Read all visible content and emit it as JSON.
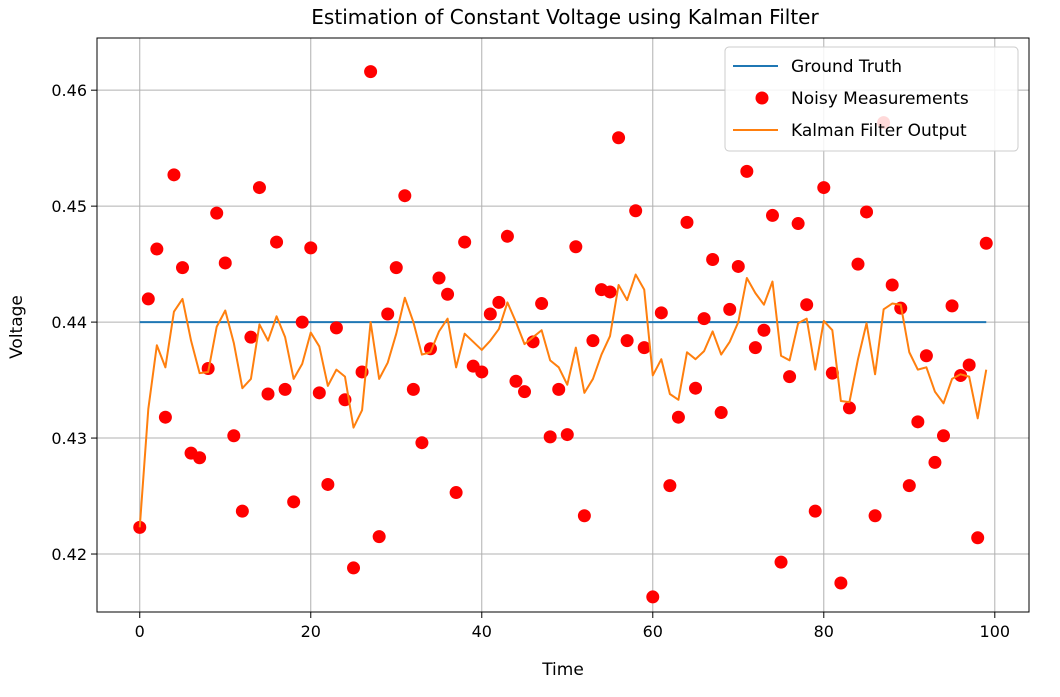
{
  "chart_data": {
    "type": "line",
    "title": "Estimation of Constant Voltage using Kalman Filter",
    "xlabel": "Time",
    "ylabel": "Voltage",
    "xlim": [
      -5,
      104
    ],
    "ylim": [
      0.415,
      0.4645
    ],
    "xticks": [
      0,
      20,
      40,
      60,
      80,
      100
    ],
    "yticks": [
      0.42,
      0.43,
      0.44,
      0.45,
      0.46
    ],
    "xtick_labels": [
      "0",
      "20",
      "40",
      "60",
      "80",
      "100"
    ],
    "ytick_labels": [
      "0.42",
      "0.43",
      "0.44",
      "0.45",
      "0.46"
    ],
    "grid": true,
    "legend_position": "top-right",
    "colors": {
      "ground_truth": "#1f77b4",
      "measurements": "#ff0000",
      "kalman": "#ff7f0e"
    },
    "series": [
      {
        "name": "Ground Truth",
        "kind": "line",
        "x": [
          0,
          99
        ],
        "y": [
          0.44,
          0.44
        ]
      },
      {
        "name": "Noisy Measurements",
        "kind": "scatter",
        "x": [
          0,
          1,
          2,
          3,
          4,
          5,
          6,
          7,
          8,
          9,
          10,
          11,
          12,
          13,
          14,
          15,
          16,
          17,
          18,
          19,
          20,
          21,
          22,
          23,
          24,
          25,
          26,
          27,
          28,
          29,
          30,
          31,
          32,
          33,
          34,
          35,
          36,
          37,
          38,
          39,
          40,
          41,
          42,
          43,
          44,
          45,
          46,
          47,
          48,
          49,
          50,
          51,
          52,
          53,
          54,
          55,
          56,
          57,
          58,
          59,
          60,
          61,
          62,
          63,
          64,
          65,
          66,
          67,
          68,
          69,
          70,
          71,
          72,
          73,
          74,
          75,
          76,
          77,
          78,
          79,
          80,
          81,
          82,
          83,
          84,
          85,
          86,
          87,
          88,
          89,
          90,
          91,
          92,
          93,
          94,
          95,
          96,
          97,
          98,
          99
        ],
        "y": [
          0.4223,
          0.442,
          0.4463,
          0.4318,
          0.4527,
          0.4447,
          0.4287,
          0.4283,
          0.436,
          0.4494,
          0.4451,
          0.4302,
          0.4237,
          0.4387,
          0.4516,
          0.4338,
          0.4469,
          0.4342,
          0.4245,
          0.44,
          0.4464,
          0.4339,
          0.426,
          0.4395,
          0.4333,
          0.4188,
          0.4357,
          0.4616,
          0.4215,
          0.4407,
          0.4447,
          0.4509,
          0.4342,
          0.4296,
          0.4377,
          0.4438,
          0.4424,
          0.4253,
          0.4469,
          0.4362,
          0.4357,
          0.4407,
          0.4417,
          0.4474,
          0.4349,
          0.434,
          0.4383,
          0.4416,
          0.4301,
          0.4342,
          0.4303,
          0.4465,
          0.4233,
          0.4384,
          0.4428,
          0.4426,
          0.4559,
          0.4384,
          0.4496,
          0.4378,
          0.4163,
          0.4408,
          0.4259,
          0.4318,
          0.4486,
          0.4343,
          0.4403,
          0.4454,
          0.4322,
          0.4411,
          0.4448,
          0.453,
          0.4378,
          0.4393,
          0.4492,
          0.4193,
          0.4353,
          0.4485,
          0.4415,
          0.4237,
          0.4516,
          0.4356,
          0.4175,
          0.4326,
          0.445,
          0.4495,
          0.4233,
          0.4572,
          0.4432,
          0.4412,
          0.4259,
          0.4314,
          0.4371,
          0.4279,
          0.4302,
          0.4414,
          0.4354,
          0.4363,
          0.4214,
          0.4468
        ]
      },
      {
        "name": "Kalman Filter Output",
        "kind": "line",
        "x": [
          0,
          1,
          2,
          3,
          4,
          5,
          6,
          7,
          8,
          9,
          10,
          11,
          12,
          13,
          14,
          15,
          16,
          17,
          18,
          19,
          20,
          21,
          22,
          23,
          24,
          25,
          26,
          27,
          28,
          29,
          30,
          31,
          32,
          33,
          34,
          35,
          36,
          37,
          38,
          39,
          40,
          41,
          42,
          43,
          44,
          45,
          46,
          47,
          48,
          49,
          50,
          51,
          52,
          53,
          54,
          55,
          56,
          57,
          58,
          59,
          60,
          61,
          62,
          63,
          64,
          65,
          66,
          67,
          68,
          69,
          70,
          71,
          72,
          73,
          74,
          75,
          76,
          77,
          78,
          79,
          80,
          81,
          82,
          83,
          84,
          85,
          86,
          87,
          88,
          89,
          90,
          91,
          92,
          93,
          94,
          95,
          96,
          97,
          98,
          99
        ],
        "y": [
          0.4223,
          0.4325,
          0.438,
          0.4361,
          0.4409,
          0.442,
          0.4384,
          0.4356,
          0.4357,
          0.4396,
          0.441,
          0.4382,
          0.4343,
          0.4351,
          0.4398,
          0.4384,
          0.4405,
          0.4387,
          0.4351,
          0.4364,
          0.4391,
          0.4379,
          0.4345,
          0.4359,
          0.4353,
          0.4309,
          0.4324,
          0.44,
          0.4351,
          0.4365,
          0.439,
          0.4421,
          0.44,
          0.4372,
          0.4374,
          0.4392,
          0.4403,
          0.4361,
          0.439,
          0.4383,
          0.4376,
          0.4384,
          0.4394,
          0.4417,
          0.44,
          0.4381,
          0.4387,
          0.4393,
          0.4367,
          0.4361,
          0.4346,
          0.4378,
          0.4339,
          0.4351,
          0.4372,
          0.4388,
          0.4432,
          0.4419,
          0.4441,
          0.4428,
          0.4354,
          0.4368,
          0.4338,
          0.4333,
          0.4374,
          0.4368,
          0.4375,
          0.4392,
          0.4372,
          0.4383,
          0.44,
          0.4438,
          0.4425,
          0.4415,
          0.4435,
          0.4371,
          0.4367,
          0.4399,
          0.4403,
          0.4359,
          0.4401,
          0.4393,
          0.4332,
          0.4331,
          0.4368,
          0.4399,
          0.4355,
          0.4411,
          0.4416,
          0.4415,
          0.4374,
          0.4359,
          0.4361,
          0.434,
          0.433,
          0.4351,
          0.4355,
          0.4353,
          0.4317,
          0.4359
        ]
      }
    ]
  }
}
